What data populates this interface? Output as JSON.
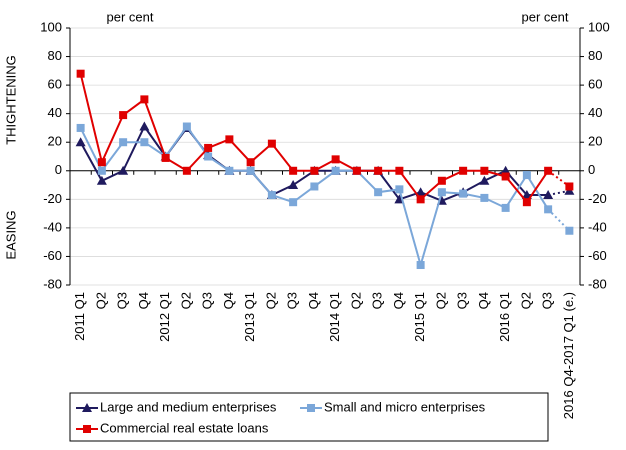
{
  "chart_data": {
    "type": "line",
    "categories": [
      "2011 Q1",
      "Q2",
      "Q3",
      "Q4",
      "2012 Q1",
      "Q2",
      "Q3",
      "Q4",
      "2013 Q1",
      "Q2",
      "Q3",
      "Q4",
      "2014 Q1",
      "Q2",
      "Q3",
      "Q4",
      "2015 Q1",
      "Q2",
      "Q3",
      "Q4",
      "2016 Q1",
      "Q2",
      "Q3",
      "2016 Q4-2017 Q1 (e.)"
    ],
    "series": [
      {
        "name": "Large and medium enterprises",
        "color": "#1f1a5e",
        "marker": "triangle",
        "values": [
          20,
          -7,
          0,
          31,
          10,
          30,
          11,
          0,
          0,
          -17,
          -10,
          0,
          0,
          0,
          0,
          -20,
          -15,
          -21,
          -15,
          -7,
          0,
          -17,
          -17,
          -14
        ]
      },
      {
        "name": "Small and micro enterprises",
        "color": "#7ba7d9",
        "marker": "square",
        "values": [
          30,
          0,
          20,
          20,
          10,
          31,
          10,
          0,
          0,
          -17,
          -22,
          -11,
          0,
          0,
          -15,
          -13,
          -66,
          -15,
          -16,
          -19,
          -26,
          -3,
          -27,
          -42
        ]
      },
      {
        "name": "Commercial real estate loans",
        "color": "#e00000",
        "marker": "square",
        "values": [
          68,
          6,
          39,
          50,
          9,
          0,
          16,
          22,
          6,
          19,
          0,
          0,
          8,
          0,
          0,
          0,
          -20,
          -7,
          0,
          0,
          -4,
          -22,
          0,
          -11
        ]
      }
    ],
    "ylim": [
      -80,
      100
    ],
    "yticks": [
      -80,
      -60,
      -40,
      -20,
      0,
      20,
      40,
      60,
      80,
      100
    ],
    "y2lim": [
      -80,
      100
    ],
    "y2ticks": [
      -80,
      -60,
      -40,
      -20,
      0,
      20,
      40,
      60,
      80,
      100
    ],
    "y_unit_left": "per cent",
    "y_unit_right": "per cent",
    "y_label_top": "THIGHTENING",
    "y_label_bottom": "EASING",
    "grid": true
  }
}
